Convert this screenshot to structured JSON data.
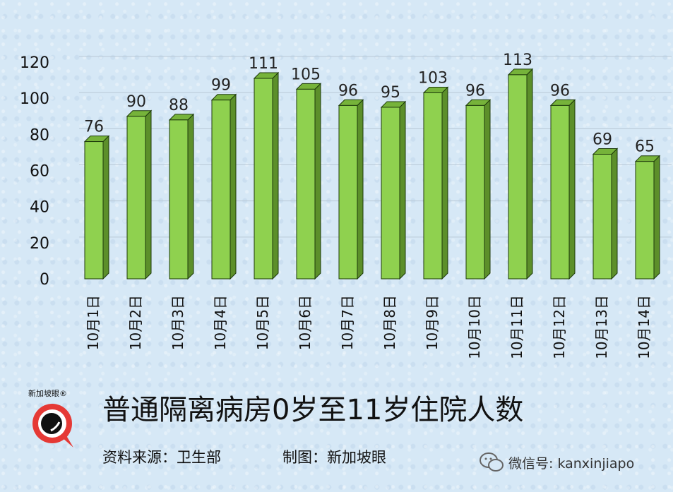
{
  "chart_data": {
    "type": "bar",
    "title": "普通隔离病房0岁至11岁住院人数",
    "categories": [
      "10月1日",
      "10月2日",
      "10月3日",
      "10月4日",
      "10月5日",
      "10月6日",
      "10月7日",
      "10月8日",
      "10月9日",
      "10月10日",
      "10月11日",
      "10月12日",
      "10月13日",
      "10月14日"
    ],
    "values": [
      76,
      90,
      88,
      99,
      111,
      105,
      96,
      95,
      103,
      96,
      113,
      96,
      69,
      65
    ],
    "yticks": [
      "0",
      "20",
      "40",
      "60",
      "80",
      "100",
      "120"
    ],
    "ylim": [
      0,
      120
    ],
    "grid": true,
    "bar_style": "3d",
    "colors": {
      "bar_face": "#8fd14f",
      "bar_side": "#5c8f2a",
      "bar_top": "#76b33a",
      "bar_stroke": "#1d3a0b"
    }
  },
  "footer": {
    "source": "资料来源：卫生部",
    "credit": "制图：新加坡眼",
    "logo_text": "新加坡眼®",
    "wechat": "微信号: kanxinjiapo"
  }
}
